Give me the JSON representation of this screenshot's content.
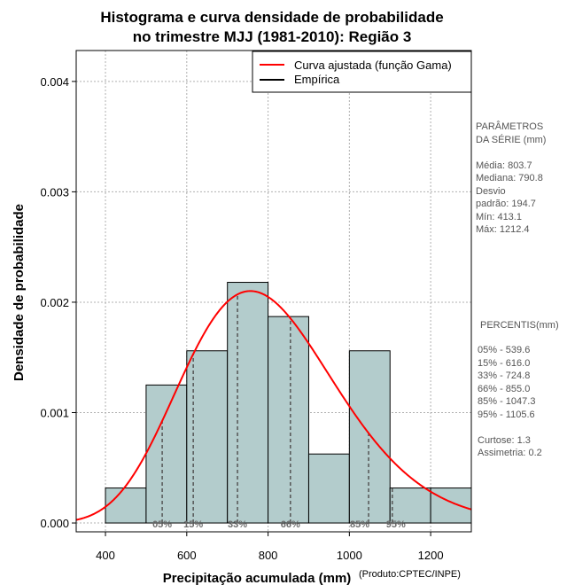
{
  "chart_data": {
    "type": "histogram",
    "title_line1": "Histograma e curva densidade de probabilidade",
    "title_line2": "no trimestre MJJ (1981-2010): Região 3",
    "xlabel": "Precipitação acumulada (mm)",
    "ylabel": "Densidade de probabilidade",
    "credit": "(Produto:CPTEC/INPE)",
    "xlim": [
      328,
      1300
    ],
    "ylim": [
      -8e-05,
      0.00428
    ],
    "x_ticks": [
      400,
      600,
      800,
      1000,
      1200
    ],
    "x_tick_labels": [
      "400",
      "600",
      "800",
      "1000",
      "1200"
    ],
    "y_ticks": [
      0,
      0.001,
      0.002,
      0.003,
      0.004
    ],
    "y_tick_labels": [
      "0.000",
      "0.001",
      "0.002",
      "0.003",
      "0.004"
    ],
    "grid": true,
    "bar_color": "#b3cccc",
    "curve_color": "#ff0000",
    "bins": [
      {
        "start": 400,
        "end": 500,
        "density": 0.000317
      },
      {
        "start": 500,
        "end": 600,
        "density": 0.00125
      },
      {
        "start": 600,
        "end": 700,
        "density": 0.00156
      },
      {
        "start": 700,
        "end": 800,
        "density": 0.00218
      },
      {
        "start": 800,
        "end": 900,
        "density": 0.00187
      },
      {
        "start": 900,
        "end": 1000,
        "density": 0.000625
      },
      {
        "start": 1000,
        "end": 1100,
        "density": 0.00156
      },
      {
        "start": 1100,
        "end": 1200,
        "density": 0.000317
      },
      {
        "start": 1200,
        "end": 1300,
        "density": 0.000317
      }
    ],
    "fitted_curve": {
      "name": "Curva ajustada (função Gama)",
      "distribution": "gamma",
      "mean": 803.7,
      "sd": 194.7
    },
    "legend": [
      {
        "label": "Curva ajustada (função Gama)",
        "color": "#ff0000"
      },
      {
        "label": "Empírica",
        "color": "#000000"
      }
    ],
    "percentiles": [
      {
        "label": "05%",
        "value": 539.6
      },
      {
        "label": "15%",
        "value": 616.0
      },
      {
        "label": "33%",
        "value": 724.8
      },
      {
        "label": "66%",
        "value": 855.0
      },
      {
        "label": "85%",
        "value": 1047.3
      },
      {
        "label": "95%",
        "value": 1105.6
      }
    ]
  },
  "stats_panel": {
    "params_title_1": "PARÂMETROS",
    "params_title_2": " DA SÉRIE (mm)",
    "media": "Média:  803.7",
    "mediana": "Mediana:  790.8",
    "desvio_1": "Desvio",
    "desvio_2": "padrão:  194.7",
    "min": "Mín:  413.1",
    "max": "Máx:  1212.4",
    "percentis_title": "PERCENTIS(mm)",
    "p05": "05% -  539.6",
    "p15": "15% -  616.0",
    "p33": "33% -  724.8",
    "p66": "66% -  855.0",
    "p85": "85% -  1047.3",
    "p95": "95% -  1105.6",
    "curtose": "Curtose:  1.3",
    "assimetria": "Assimetria:  0.2"
  }
}
